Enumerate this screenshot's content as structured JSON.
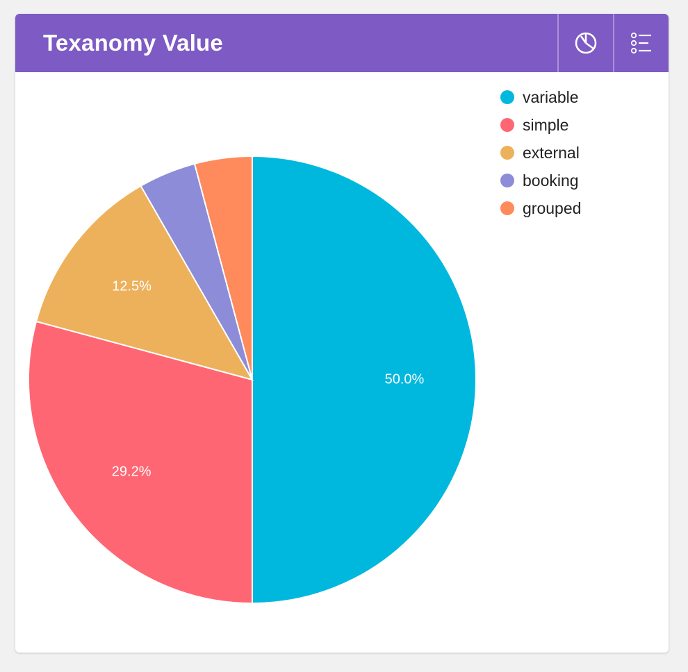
{
  "card": {
    "title": "Texanomy Value",
    "header_color": "#7d5ac4"
  },
  "header_actions": [
    {
      "name": "chart-type-button",
      "icon": "pie-chart-icon"
    },
    {
      "name": "list-view-button",
      "icon": "list-options-icon"
    }
  ],
  "chart_data": {
    "type": "pie",
    "title": "",
    "categories": [
      "variable",
      "simple",
      "external",
      "booking",
      "grouped"
    ],
    "values": [
      50.0,
      29.2,
      12.5,
      4.15,
      4.15
    ],
    "colors": [
      "#00b8de",
      "#ff6673",
      "#edb15c",
      "#8c8cd8",
      "#ff8a5c"
    ],
    "data_labels": [
      "50.0%",
      "29.2%",
      "12.5%",
      "",
      ""
    ],
    "start_angle": "12 o'clock",
    "direction": "clockwise",
    "legend_placement": "top-right"
  }
}
